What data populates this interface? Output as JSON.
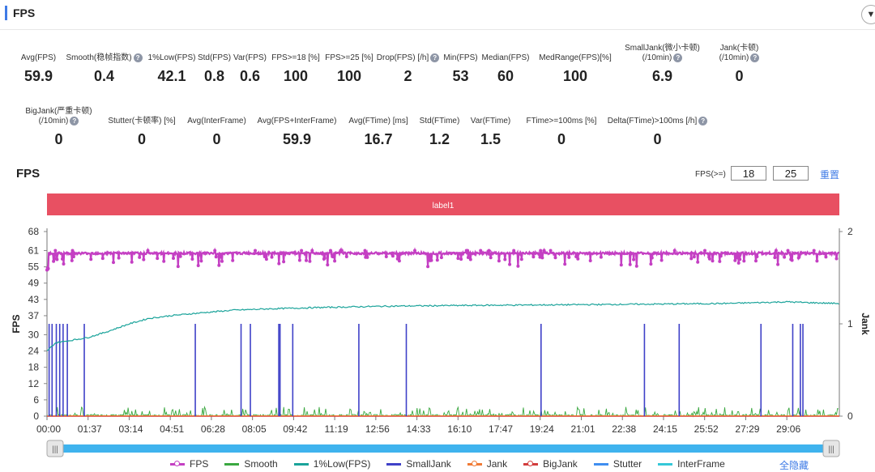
{
  "section_title": "FPS",
  "stats_row1": [
    {
      "label": "Avg(FPS)",
      "value": "59.9",
      "help": false
    },
    {
      "label": "Smooth(稳帧指数)",
      "value": "0.4",
      "help": true
    },
    {
      "label": "1%Low(FPS)",
      "value": "42.1",
      "help": false
    },
    {
      "label": "Std(FPS)",
      "value": "0.8",
      "help": false
    },
    {
      "label": "Var(FPS)",
      "value": "0.6",
      "help": false
    },
    {
      "label": "FPS>=18 [%]",
      "value": "100",
      "help": false
    },
    {
      "label": "FPS>=25 [%]",
      "value": "100",
      "help": false
    },
    {
      "label": "Drop(FPS) [/h]",
      "value": "2",
      "help": true
    },
    {
      "label": "Min(FPS)",
      "value": "53",
      "help": false
    },
    {
      "label": "Median(FPS)",
      "value": "60",
      "help": false
    },
    {
      "label": "MedRange(FPS)[%]",
      "value": "100",
      "help": false
    },
    {
      "label": "SmallJank(微小卡顿)\n(/10min)",
      "value": "6.9",
      "help": true
    },
    {
      "label": "Jank(卡顿)\n(/10min)",
      "value": "0",
      "help": true
    }
  ],
  "stats_row2": [
    {
      "label": "BigJank(严重卡顿)\n(/10min)",
      "value": "0",
      "help": true
    },
    {
      "label": "Stutter(卡顿率) [%]",
      "value": "0",
      "help": false
    },
    {
      "label": "Avg(InterFrame)",
      "value": "0",
      "help": false
    },
    {
      "label": "Avg(FPS+InterFrame)",
      "value": "59.9",
      "help": false
    },
    {
      "label": "Avg(FTime) [ms]",
      "value": "16.7",
      "help": false
    },
    {
      "label": "Std(FTime)",
      "value": "1.2",
      "help": false
    },
    {
      "label": "Var(FTime)",
      "value": "1.5",
      "help": false
    },
    {
      "label": "FTime>=100ms [%]",
      "value": "0",
      "help": false
    },
    {
      "label": "Delta(FTime)>100ms [/h]",
      "value": "0",
      "help": true
    }
  ],
  "chart_header": {
    "title": "FPS",
    "threshold_label": "FPS(>=)",
    "threshold_1": "18",
    "threshold_2": "25",
    "reset": "重置"
  },
  "legend_hide_all": "全隐藏",
  "colors": {
    "fps": "#c43fc3",
    "smooth": "#3aa840",
    "low1": "#1aa39a",
    "smalljank": "#3f41c8",
    "jank": "#f07a35",
    "bigjank": "#d23c3c",
    "stutter": "#3f8ef0",
    "interframe": "#35c8d8",
    "label_bar": "#e85062",
    "scroll": "#3fb3ee"
  },
  "chart_data": {
    "type": "line",
    "label_bar": "label1",
    "ylabel_left": "FPS",
    "ylabel_right": "Jank",
    "y_left_ticks": [
      0,
      6,
      12,
      18,
      24,
      30,
      37,
      43,
      49,
      55,
      61,
      68
    ],
    "y_left_range": [
      0,
      68
    ],
    "y_right_ticks": [
      0,
      1,
      2
    ],
    "y_right_range": [
      0,
      2
    ],
    "x_tick_labels": [
      "00:00",
      "01:37",
      "03:14",
      "04:51",
      "06:28",
      "08:05",
      "09:42",
      "11:19",
      "12:56",
      "14:33",
      "16:10",
      "17:47",
      "19:24",
      "21:01",
      "22:38",
      "24:15",
      "25:52",
      "27:29",
      "29:06"
    ],
    "x_range_seconds": [
      0,
      1870
    ],
    "series": [
      {
        "name": "FPS",
        "avg": 59.9,
        "min": 53,
        "max": 61
      },
      {
        "name": "Smooth",
        "typical_range": [
          0,
          4
        ]
      },
      {
        "name": "1%Low(FPS)",
        "x_seconds": [
          0,
          20,
          60,
          97,
          140,
          194,
          240,
          291,
          360,
          436,
          520,
          640,
          800,
          1000,
          1200,
          1455,
          1600,
          1746,
          1800,
          1870
        ],
        "values": [
          24,
          27,
          28,
          29,
          31,
          34,
          36,
          37,
          38,
          39,
          39.5,
          40,
          40.5,
          40.8,
          41,
          41.3,
          41.5,
          42.1,
          41.8,
          41.5
        ]
      },
      {
        "name": "SmallJank",
        "x_seconds": [
          5,
          12,
          22,
          30,
          38,
          48,
          88,
          350,
          458,
          480,
          547,
          550,
          580,
          736,
          848,
          1166,
          1410,
          1492,
          1685,
          1760,
          1778,
          1784
        ],
        "values": [
          1,
          1,
          1,
          1,
          1,
          1,
          1,
          1,
          1,
          1,
          1,
          1,
          1,
          1,
          1,
          1,
          1,
          1,
          1,
          1,
          1,
          1
        ]
      },
      {
        "name": "Jank",
        "values": [
          0
        ]
      },
      {
        "name": "BigJank",
        "values": [
          0
        ]
      },
      {
        "name": "Stutter",
        "values": [
          0
        ]
      },
      {
        "name": "InterFrame",
        "values": [
          0
        ]
      }
    ],
    "legend": [
      "FPS",
      "Smooth",
      "1%Low(FPS)",
      "SmallJank",
      "Jank",
      "BigJank",
      "Stutter",
      "InterFrame"
    ]
  }
}
